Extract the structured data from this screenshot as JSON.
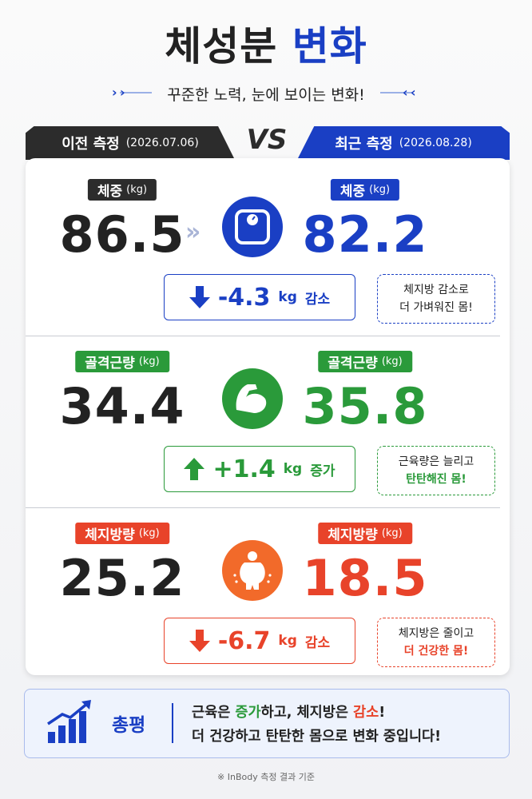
{
  "header": {
    "title_main": "체성분",
    "title_accent": "변화",
    "subtitle": "꾸준한 노력, 눈에 보이는 변화!"
  },
  "compare": {
    "before": {
      "label": "이전 측정",
      "date": "(2026.07.06)"
    },
    "vs": "VS",
    "after": {
      "label": "최근 측정",
      "date": "(2026.08.28)"
    }
  },
  "metrics": [
    {
      "name": "체중",
      "unit": "(kg)",
      "before": "86.5",
      "after": "82.2",
      "change": "-4.3",
      "change_unit": "kg",
      "change_word": "감소",
      "note": [
        "체지방 감소로",
        "더 가벼워진 몸!"
      ]
    },
    {
      "name": "골격근량",
      "unit": "(kg)",
      "before": "34.4",
      "after": "35.8",
      "change": "+1.4",
      "change_unit": "kg",
      "change_word": "증가",
      "note": [
        "근육량은 늘리고",
        "탄탄해진 몸!"
      ]
    },
    {
      "name": "체지방량",
      "unit": "(kg)",
      "before": "25.2",
      "after": "18.5",
      "change": "-6.7",
      "change_unit": "kg",
      "change_word": "감소",
      "note": [
        "체지방은 줄이고",
        "더 건강한 몸!"
      ]
    }
  ],
  "summary": {
    "label": "총평",
    "line1": [
      "근육은 ",
      "증가",
      "하고, 체지방은 ",
      "감소",
      "!"
    ],
    "line2": "더 건강하고 탄탄한 몸으로 변화 중입니다!"
  },
  "footnote": "※ InBody 측정 결과 기준"
}
